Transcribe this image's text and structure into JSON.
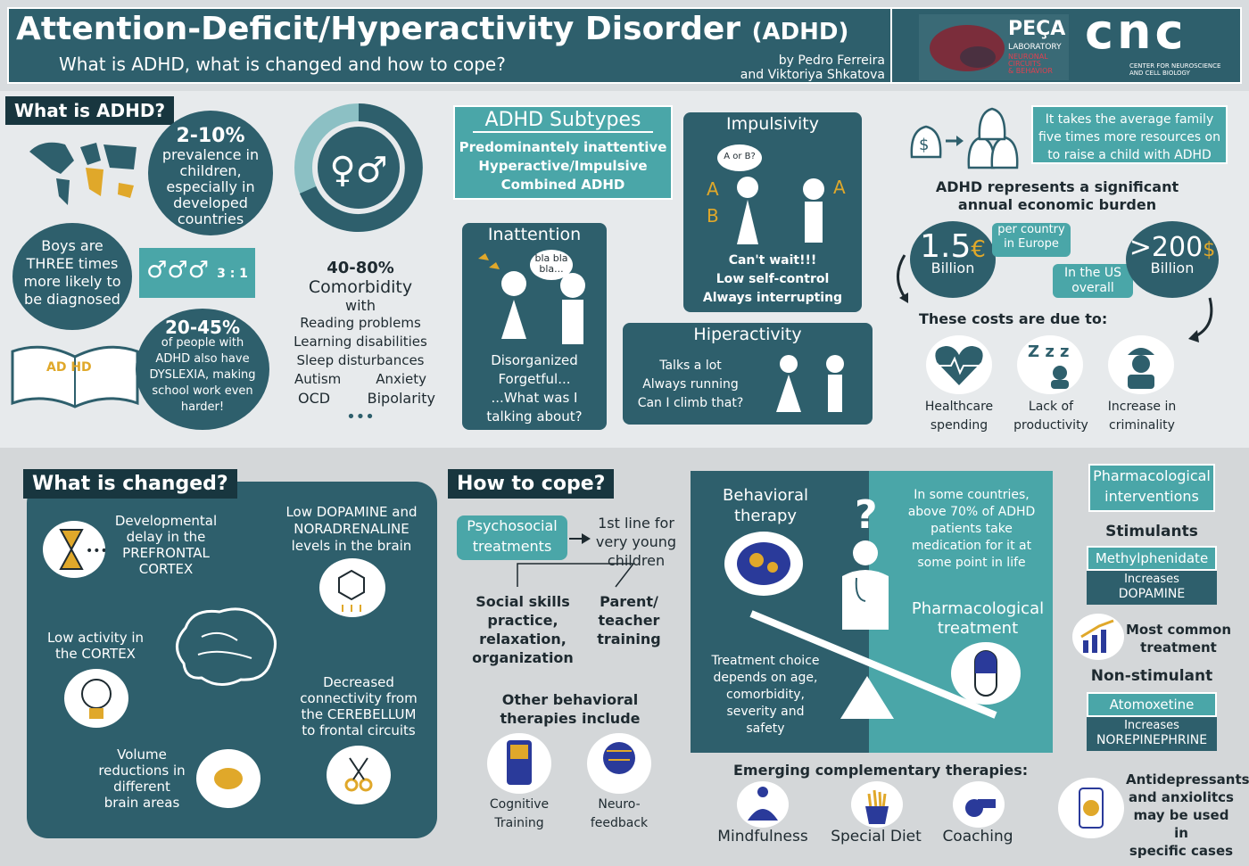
{
  "header": {
    "title": "Attention-Deficit/Hyperactivity Disorder",
    "title_abbr": "(ADHD)",
    "subtitle": "What is ADHD, what is changed and how to cope?",
    "authors_line1": "by Pedro Ferreira",
    "authors_line2": "and Viktoriya Shkatova",
    "lab_name": "PEÇA",
    "lab_sub": "LABORATORY",
    "lab_sub2": "NEURONAL",
    "lab_sub3": "CIRCUITS",
    "lab_sub4": "& BEHAVIOR",
    "cnc": "cnc",
    "cnc_sub1": "CENTER FOR NEUROSCIENCE",
    "cnc_sub2": "AND CELL BIOLOGY"
  },
  "what_is": {
    "tag": "What is ADHD?",
    "prev_pct": "2-10%",
    "prev_1": "prevalence in",
    "prev_2": "children,",
    "prev_3": "especially in",
    "prev_4": "developed",
    "prev_5": "countries",
    "boys_1": "Boys are",
    "boys_2": "THREE times",
    "boys_3": "more likely to",
    "boys_4": "be diagnosed",
    "dys_pct": "20-45%",
    "dys_1": "of people with",
    "dys_2": "ADHD also have",
    "dys_3": "DYSLEXIA, making",
    "dys_4": "school work even",
    "dys_5": "harder!",
    "book_text": "AD HD",
    "ratio": "3 : 1",
    "comorb_pct": "40-80%",
    "comorb_title": "Comorbidity",
    "comorb_with": "with",
    "comorb_1": "Reading problems",
    "comorb_2": "Learning disabilities",
    "comorb_3": "Sleep disturbances",
    "comorb_4a": "Autism",
    "comorb_4b": "Anxiety",
    "comorb_5a": "OCD",
    "comorb_5b": "Bipolarity",
    "comorb_more": "•••"
  },
  "subtypes": {
    "title": "ADHD Subtypes",
    "l1": "Predominantely inattentive",
    "l2": "Hyperactive/Impulsive",
    "l3": "Combined ADHD"
  },
  "inattention": {
    "title": "Inattention",
    "bubble": "bla bla bla...",
    "l1": "Disorganized",
    "l2": "Forgetful...",
    "l3": "...What was I",
    "l4": "talking about?"
  },
  "impulsivity": {
    "title": "Impulsivity",
    "bubble": "A or B?",
    "a": "A",
    "b": "B",
    "l1": "Can't wait!!!",
    "l2": "Low self-control",
    "l3": "Always interrupting"
  },
  "hiperactivity": {
    "title": "Hiperactivity",
    "l1": "Talks a lot",
    "l2": "Always running",
    "l3": "Can I climb that?"
  },
  "economics": {
    "family_1": "It takes the average family",
    "family_2": "five times more resources on",
    "family_3": "to raise a child with ADHD",
    "burden_1": "ADHD represents a significant",
    "burden_2": "annual economic burden",
    "eu_val": "1.5",
    "eu_cur": "€",
    "eu_unit": "Billion",
    "eu_note_1": "per country",
    "eu_note_2": "in Europe",
    "us_val": ">200",
    "us_cur": "$",
    "us_unit": "Billion",
    "us_note_1": "In the US",
    "us_note_2": "overall",
    "due": "These costs are due to:",
    "c1_1": "Healthcare",
    "c1_2": "spending",
    "c2_1": "Lack of",
    "c2_2": "productivity",
    "c3_1": "Increase in",
    "c3_2": "criminality",
    "zzz": "Z z z"
  },
  "changed": {
    "tag": "What is changed?",
    "dev_1": "Developmental",
    "dev_2": "delay in the",
    "dev_3": "PREFRONTAL",
    "dev_4": "CORTEX",
    "dop_1": "Low DOPAMINE and",
    "dop_2": "NORADRENALINE",
    "dop_3": "levels in the brain",
    "low_1": "Low activity in",
    "low_2": "the CORTEX",
    "dec_1": "Decreased",
    "dec_2": "connectivity from",
    "dec_3": "the CEREBELLUM",
    "dec_4": "to frontal circuits",
    "vol_1": "Volume",
    "vol_2": "reductions in",
    "vol_3": "different",
    "vol_4": "brain areas",
    "dots": "•••"
  },
  "cope": {
    "tag": "How to cope?",
    "psy_1": "Psychosocial",
    "psy_2": "treatments",
    "first_1": "1st line for",
    "first_2": "very young",
    "first_3": "children",
    "soc_1": "Social skills",
    "soc_2": "practice,",
    "soc_3": "relaxation,",
    "soc_4": "organization",
    "par_1": "Parent/",
    "par_2": "teacher",
    "par_3": "training",
    "other_1": "Other behavioral",
    "other_2": "therapies include",
    "cog_1": "Cognitive",
    "cog_2": "Training",
    "neu_1": "Neuro-",
    "neu_2": "feedback"
  },
  "scale": {
    "beh_1": "Behavioral",
    "beh_2": "therapy",
    "some_1": "In some countries,",
    "some_2": "above 70% of ADHD",
    "some_3": "patients take",
    "some_4": "medication for it at",
    "some_5": "some point in life",
    "pharm_1": "Pharmacological",
    "pharm_2": "treatment",
    "choice_1": "Treatment choice",
    "choice_2": "depends on age,",
    "choice_3": "comorbidity,",
    "choice_4": "severity and",
    "choice_5": "safety",
    "q": "?"
  },
  "emerging": {
    "title": "Emerging complementary therapies:",
    "t1": "Mindfulness",
    "t2": "Special Diet",
    "t3": "Coaching"
  },
  "pharma": {
    "title_1": "Pharmacological",
    "title_2": "interventions",
    "stim": "Stimulants",
    "methyl": "Methylphenidate",
    "inc1_1": "Increases",
    "inc1_2": "DOPAMINE",
    "common_1": "Most common",
    "common_2": "treatment",
    "nonstim": "Non-stimulant",
    "atom": "Atomoxetine",
    "inc2_1": "Increases",
    "inc2_2": "NOREPINEPHRINE",
    "anti_1": "Antidepressants",
    "anti_2": "and anxiolitcs",
    "anti_3": "may be used in",
    "anti_4": "specific cases"
  }
}
